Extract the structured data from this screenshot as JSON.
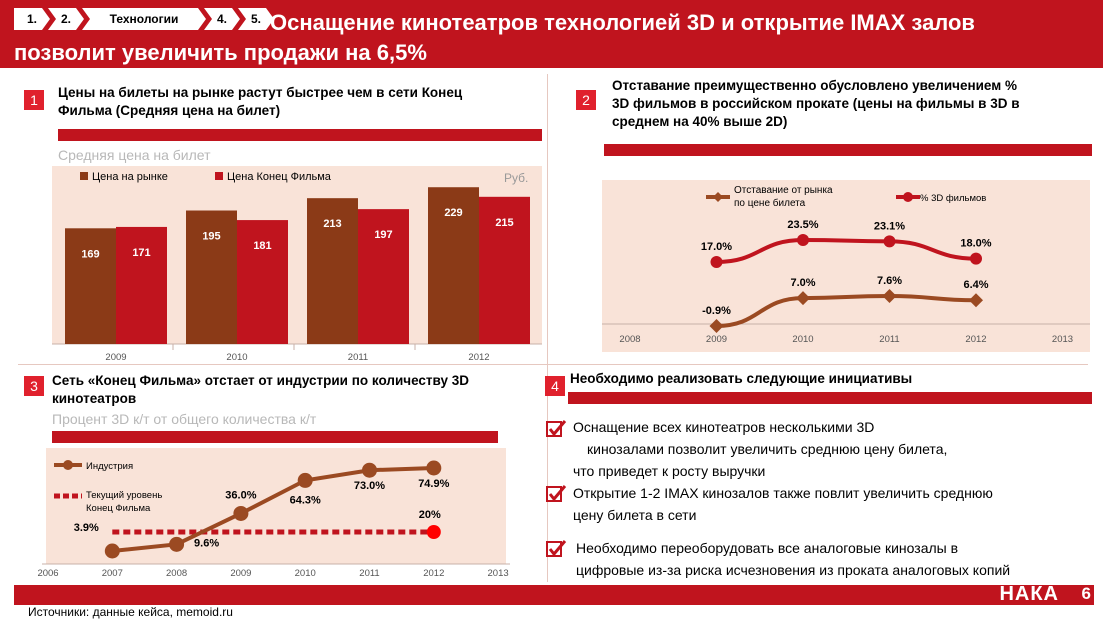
{
  "nav": {
    "steps": [
      "1.",
      "2.",
      "Технологии",
      "4.",
      "5."
    ]
  },
  "header": {
    "title_line1": "Оснащение кинотеатров технологией 3D и открытие IMAX залов",
    "title_line2": "позволит увеличить продажи на 6,5%"
  },
  "sections": [
    {
      "num": "1",
      "title_line1": "Цены на билеты на рынке растут быстрее чем в сети Конец",
      "title_line2": "Фильма (Средняя цена на билет)",
      "subtitle": "Средняя цена на билет"
    },
    {
      "num": "2",
      "title_line1": "Отставание преимущественно обусловлено увеличением %",
      "title_line2": "3D фильмов в российском прокате (цены на фильмы в 3D в",
      "title_line3": "среднем на 40% выше 2D)"
    },
    {
      "num": "3",
      "title_line1": "Сеть «Конец Фильма» отстает от индустрии по количеству 3D",
      "title_line2": "кинотеатров",
      "subtitle": "Процент 3D к/т от общего количества к/т"
    },
    {
      "num": "4",
      "title_line1": "Необходимо реализовать следующие инициативы"
    }
  ],
  "chart_data": [
    {
      "type": "bar",
      "title": "Средняя цена на билет",
      "unit": "Руб.",
      "categories": [
        "2009",
        "2010",
        "2011",
        "2012"
      ],
      "series": [
        {
          "name": "Цена на рынке",
          "color": "#8b3a17",
          "values": [
            169,
            195,
            213,
            229
          ]
        },
        {
          "name": "Цена Конец Фильма",
          "color": "#c0141e",
          "values": [
            171,
            181,
            197,
            215
          ]
        }
      ],
      "ylim": [
        0,
        260
      ]
    },
    {
      "type": "line",
      "x": [
        "2008",
        "2009",
        "2010",
        "2011",
        "2012",
        "2013"
      ],
      "series": [
        {
          "name": "% 3D фильмов",
          "color": "#c0141e",
          "marker": "circle",
          "x": [
            2009,
            2010,
            2011,
            2012
          ],
          "values": [
            17.0,
            23.5,
            23.1,
            18.0
          ],
          "labels": [
            "17.0%",
            "23.5%",
            "23.1%",
            "18.0%"
          ]
        },
        {
          "name": "Отставание от рынка по цене билета",
          "color": "#9b4a22",
          "marker": "diamond",
          "x": [
            2009,
            2010,
            2011,
            2012
          ],
          "values": [
            -0.9,
            7.0,
            7.6,
            6.4
          ],
          "labels": [
            "-0.9%",
            "7.0%",
            "7.6%",
            "6.4%"
          ]
        }
      ],
      "legend": [
        "Отставание от рынка",
        "по цене билета",
        "% 3D фильмов"
      ]
    },
    {
      "type": "line",
      "title": "Процент 3D к/т от общего количества к/т",
      "x": [
        "2006",
        "2007",
        "2008",
        "2009",
        "2010",
        "2011",
        "2012",
        "2013"
      ],
      "series": [
        {
          "name": "Индустрия",
          "color": "#9b4a22",
          "marker": "circle",
          "x": [
            2007,
            2008,
            2009,
            2010,
            2011,
            2012
          ],
          "values": [
            3.9,
            9.6,
            36.0,
            64.3,
            73.0,
            74.9
          ],
          "labels": [
            "3.9%",
            "9.6%",
            "36.0%",
            "64.3%",
            "73.0%",
            "74.9%"
          ]
        },
        {
          "name": "Текущий уровень Конец Фильма",
          "color": "#c0141e",
          "style": "dashed",
          "x": [
            2007,
            2012
          ],
          "values": [
            20,
            20
          ],
          "labels": [
            "20%"
          ]
        }
      ],
      "legend": [
        "Индустрия",
        "Текущий уровень",
        "Конец Фильма"
      ]
    }
  ],
  "initiatives": [
    {
      "lines": [
        "Оснащение всех кинотеатров несколькими 3D",
        "кинозалами позволит увеличить среднюю цену билета,",
        "что приведет к росту выручки"
      ]
    },
    {
      "lines": [
        "Открытие 1-2 IMAX кинозалов также повлит увеличить среднюю",
        "цену билета в сети"
      ]
    },
    {
      "lines": [
        "Необходимо переоборудовать все аналоговые кинозалы в",
        "цифровые из-за риска исчезновения из проката аналоговых копий"
      ]
    }
  ],
  "footer": {
    "brand": "НАКА",
    "page": "6",
    "sources": "Источники: данные кейса, memoid.ru"
  },
  "colors": {
    "brand_red": "#c0141e",
    "brown": "#8b3a17",
    "panel_bg": "#f9e3d8"
  }
}
